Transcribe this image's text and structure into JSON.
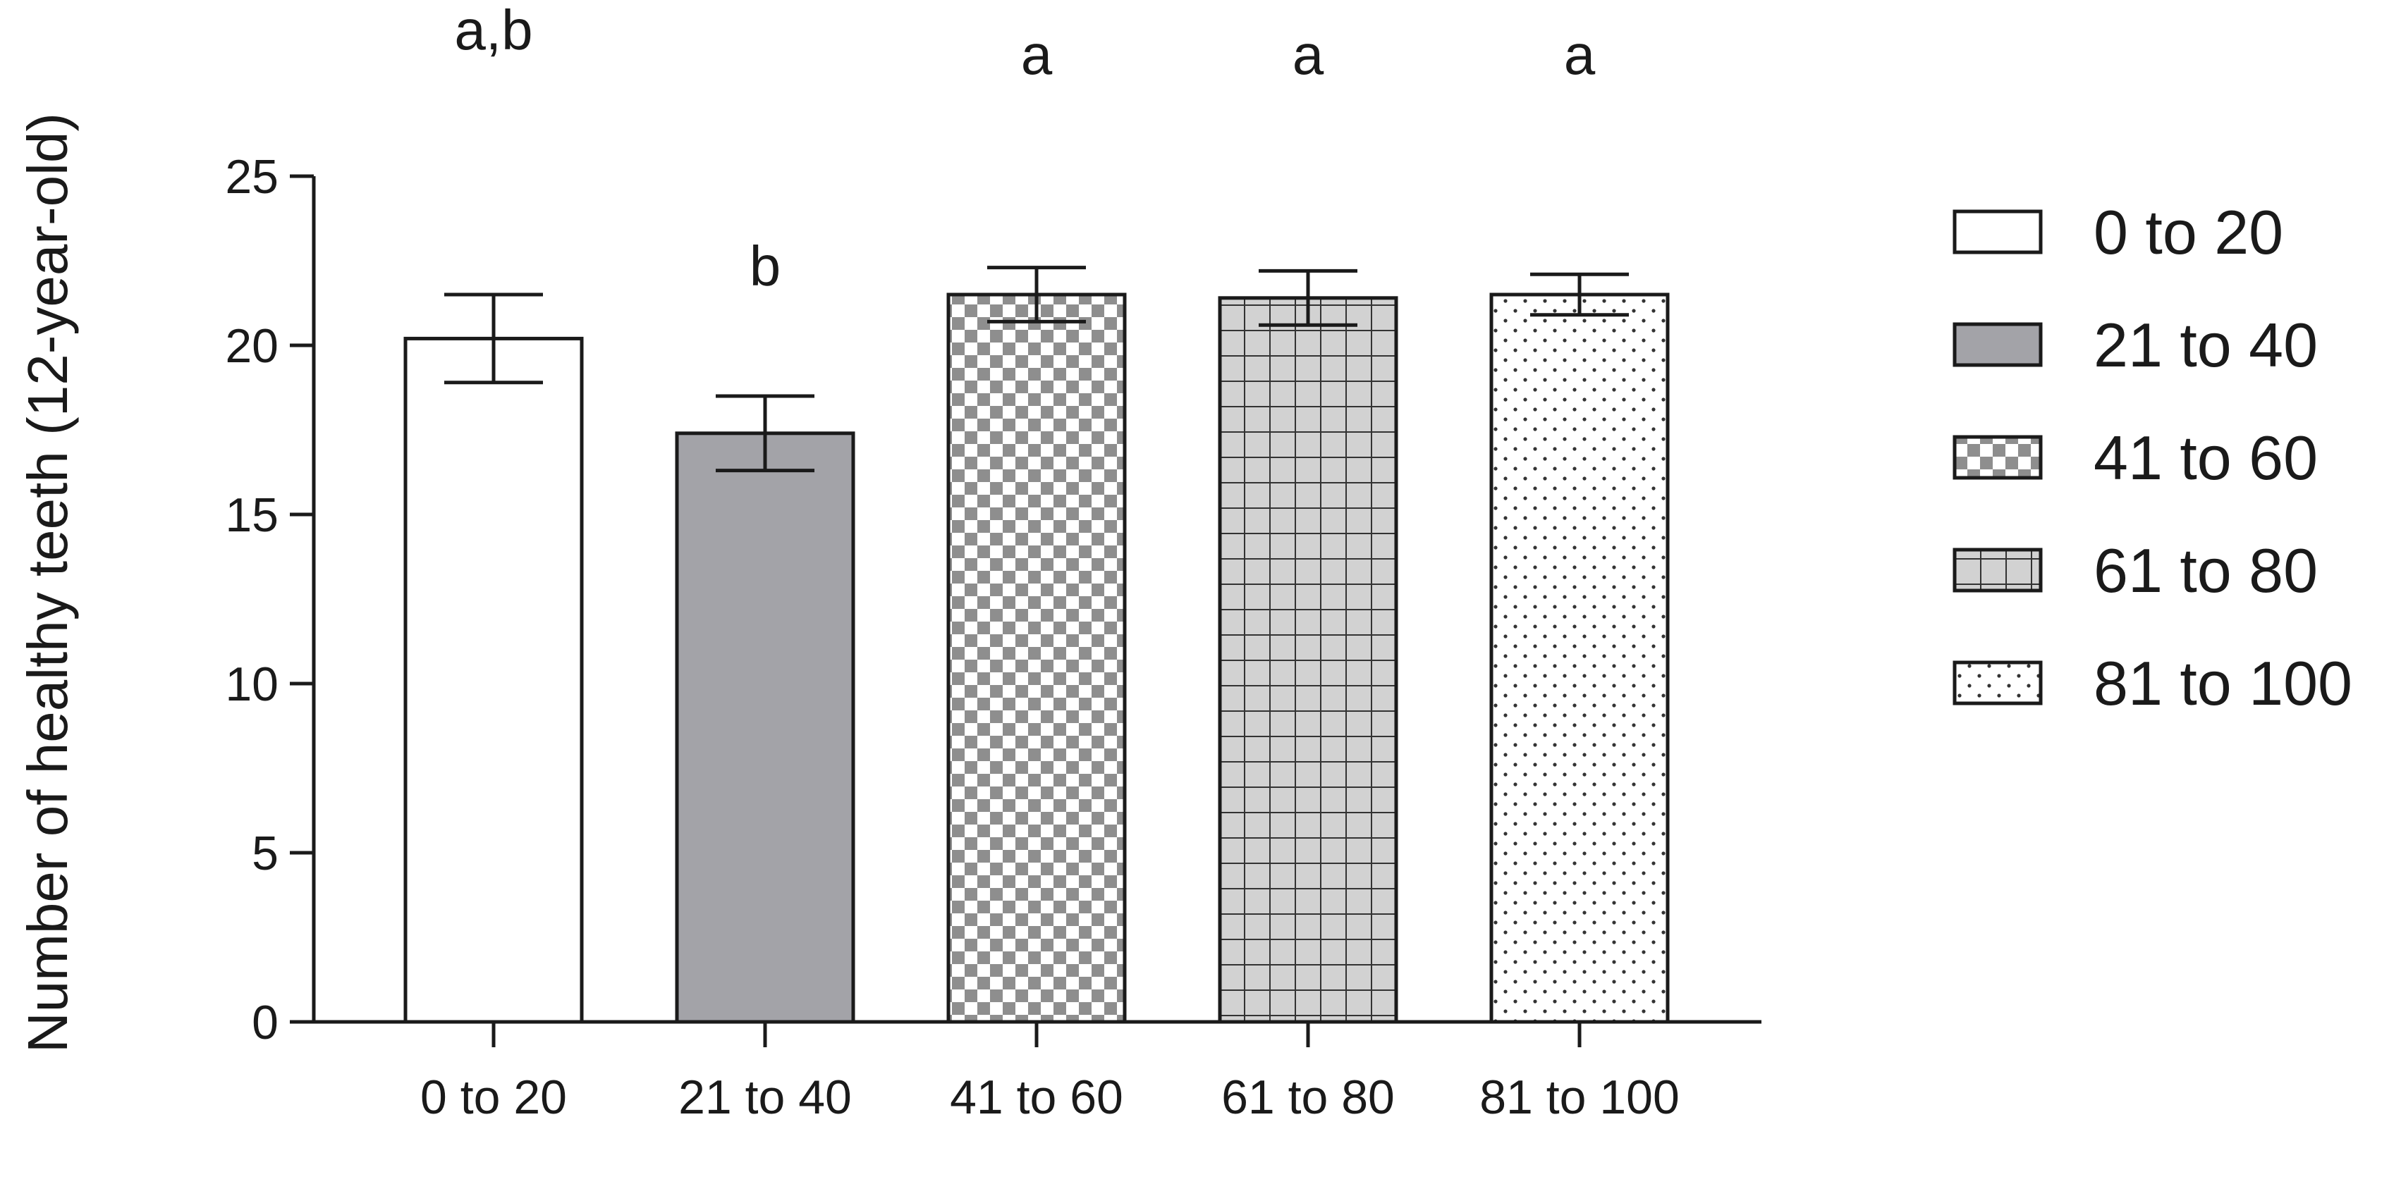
{
  "chart_data": {
    "type": "bar",
    "categories": [
      "0 to 20",
      "21 to 40",
      "41 to 60",
      "61 to 80",
      "81 to 100"
    ],
    "values": [
      20.2,
      17.4,
      21.5,
      21.4,
      21.5
    ],
    "error": [
      1.3,
      1.1,
      0.8,
      0.8,
      0.6
    ],
    "significance_labels": [
      "a,b",
      "b",
      "a",
      "a",
      "a"
    ],
    "ylabel": "Number of healthy teeth (12-year-old)",
    "xlabel": "",
    "ylim": [
      0,
      25
    ],
    "yticks": [
      0,
      5,
      10,
      15,
      20,
      25
    ],
    "legend": {
      "placement": "right",
      "entries": [
        "0 to 20",
        "21 to 40",
        "41 to 60",
        "61 to 80",
        "81 to 100"
      ]
    },
    "fills": [
      "white",
      "solid-gray",
      "checkerboard",
      "grid",
      "dots"
    ],
    "colors": {
      "solid_gray": "#a3a3a8",
      "pattern_gray": "#8e8e8e",
      "light_fill": "#d2d2d2",
      "outline": "#1a1a1a"
    },
    "grid": false
  }
}
